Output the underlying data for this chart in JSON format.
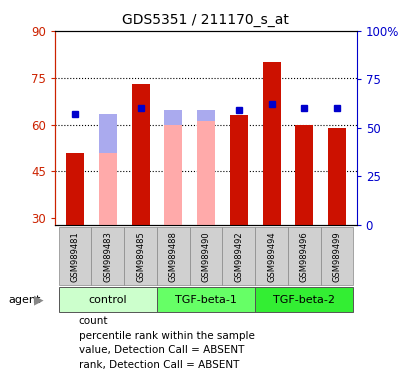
{
  "title": "GDS5351 / 211170_s_at",
  "samples": [
    "GSM989481",
    "GSM989483",
    "GSM989485",
    "GSM989488",
    "GSM989490",
    "GSM989492",
    "GSM989494",
    "GSM989496",
    "GSM989499"
  ],
  "groups": [
    {
      "name": "control",
      "start": 0,
      "end": 2,
      "color": "#ccffcc"
    },
    {
      "name": "TGF-beta-1",
      "start": 3,
      "end": 5,
      "color": "#66ff66"
    },
    {
      "name": "TGF-beta-2",
      "start": 6,
      "end": 8,
      "color": "#33ee33"
    }
  ],
  "count_values": [
    51,
    null,
    73,
    null,
    null,
    63,
    80,
    60,
    59
  ],
  "percentile_rank": [
    57,
    null,
    60,
    null,
    null,
    59,
    62,
    60,
    60
  ],
  "absent_value": [
    null,
    51,
    null,
    60,
    61,
    null,
    null,
    null,
    null
  ],
  "absent_rank_pct": [
    null,
    57,
    null,
    59,
    59,
    null,
    null,
    null,
    null
  ],
  "ylim_left": [
    28,
    90
  ],
  "ylim_right": [
    0,
    100
  ],
  "yticks_left": [
    30,
    45,
    60,
    75,
    90
  ],
  "yticks_right": [
    0,
    25,
    50,
    75,
    100
  ],
  "ytick_labels_right": [
    "0",
    "25",
    "50",
    "75",
    "100%"
  ],
  "left_axis_color": "#cc2200",
  "right_axis_color": "#0000cc",
  "count_bar_color": "#cc1100",
  "absent_value_color": "#ffaaaa",
  "absent_rank_color": "#aaaaee",
  "percentile_marker_color": "#0000cc",
  "bar_width": 0.55,
  "grid_yticks": [
    45,
    60,
    75
  ],
  "legend": [
    {
      "color": "#cc1100",
      "label": "count"
    },
    {
      "color": "#0000cc",
      "label": "percentile rank within the sample"
    },
    {
      "color": "#ffaaaa",
      "label": "value, Detection Call = ABSENT"
    },
    {
      "color": "#aaaaee",
      "label": "rank, Detection Call = ABSENT"
    }
  ]
}
